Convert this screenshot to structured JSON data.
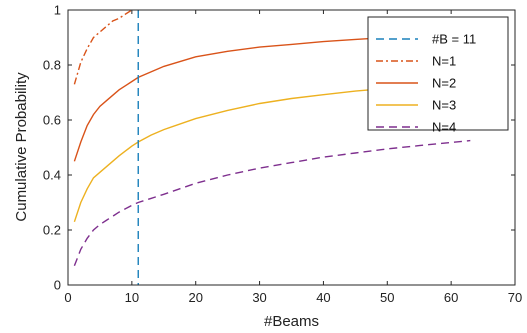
{
  "chart_data": {
    "type": "line",
    "title": "",
    "xlabel": "#Beams",
    "ylabel": "Cumulative Probability",
    "xlim": [
      0,
      70
    ],
    "ylim": [
      0,
      1
    ],
    "xticks": [
      0,
      10,
      20,
      30,
      40,
      50,
      60,
      70
    ],
    "yticks": [
      0,
      0.2,
      0.4,
      0.6,
      0.8,
      1
    ],
    "ytick_labels": [
      "0",
      "0.2",
      "0.4",
      "0.6",
      "0.8",
      "1"
    ],
    "grid": false,
    "legend_position": "top-right",
    "vline": {
      "x": 11,
      "name": "#B = 11",
      "color": "#1a80bb",
      "style": "dashed"
    },
    "series": [
      {
        "name": "N=1",
        "color": "#d95319",
        "style": "dashdot",
        "x": [
          1,
          2,
          3,
          4,
          5,
          6,
          7,
          8,
          9,
          10
        ],
        "y": [
          0.73,
          0.81,
          0.86,
          0.9,
          0.92,
          0.94,
          0.96,
          0.97,
          0.985,
          1.0
        ]
      },
      {
        "name": "N=2",
        "color": "#d95319",
        "style": "solid",
        "x": [
          1,
          2,
          3,
          4,
          5,
          6,
          8,
          10,
          11,
          13,
          15,
          20,
          25,
          30,
          35,
          40,
          45,
          50,
          55,
          60,
          63
        ],
        "y": [
          0.45,
          0.52,
          0.58,
          0.62,
          0.65,
          0.67,
          0.71,
          0.74,
          0.755,
          0.775,
          0.795,
          0.83,
          0.85,
          0.865,
          0.875,
          0.885,
          0.893,
          0.9,
          0.905,
          0.91,
          0.915
        ]
      },
      {
        "name": "N=3",
        "color": "#edb120",
        "style": "solid",
        "x": [
          1,
          2,
          3,
          4,
          5,
          6,
          8,
          10,
          11,
          13,
          15,
          20,
          25,
          30,
          35,
          40,
          45,
          50,
          55,
          60,
          63
        ],
        "y": [
          0.23,
          0.3,
          0.35,
          0.39,
          0.41,
          0.43,
          0.47,
          0.505,
          0.52,
          0.545,
          0.565,
          0.605,
          0.635,
          0.66,
          0.678,
          0.692,
          0.705,
          0.715,
          0.725,
          0.733,
          0.738
        ]
      },
      {
        "name": "N=4",
        "color": "#7e2f8e",
        "style": "dashed",
        "x": [
          1,
          2,
          3,
          4,
          5,
          6,
          8,
          10,
          11,
          13,
          15,
          20,
          25,
          30,
          35,
          40,
          45,
          50,
          55,
          60,
          63
        ],
        "y": [
          0.07,
          0.13,
          0.17,
          0.2,
          0.22,
          0.235,
          0.265,
          0.29,
          0.3,
          0.315,
          0.33,
          0.37,
          0.4,
          0.425,
          0.445,
          0.465,
          0.48,
          0.495,
          0.507,
          0.518,
          0.525
        ]
      }
    ]
  }
}
